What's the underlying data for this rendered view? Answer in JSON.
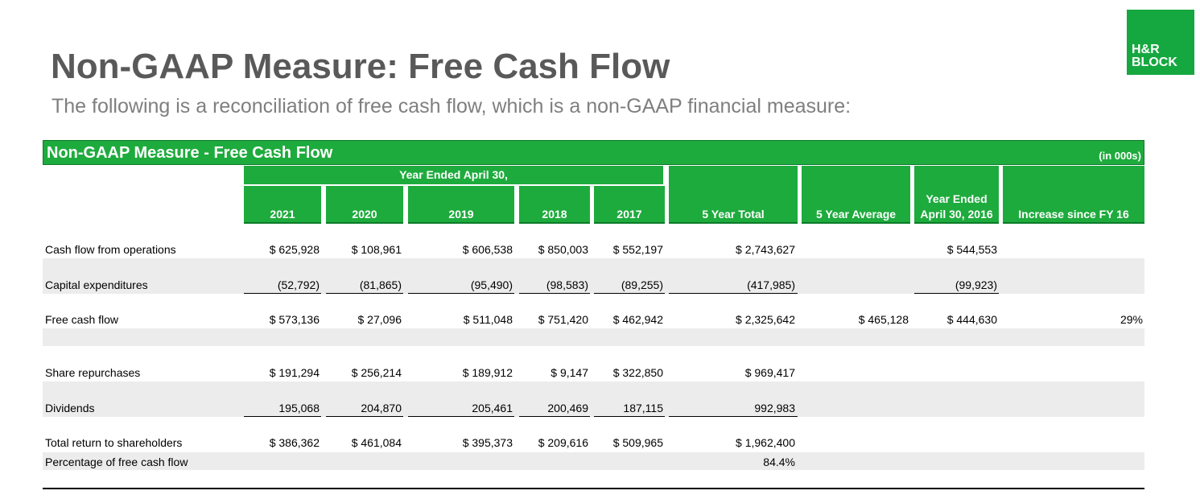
{
  "header": {
    "title": "Non-GAAP Measure: Free Cash Flow",
    "subtitle": "The following is a reconciliation of free cash flow, which is a non-GAAP financial measure:",
    "logo_line1": "H&R",
    "logo_line2": "BLOCK"
  },
  "table": {
    "banner_title": "Non-GAAP Measure - Free Cash Flow",
    "units": "(in 000s)",
    "group_header": "Year Ended April 30,",
    "columns": [
      "2021",
      "2020",
      "2019",
      "2018",
      "2017",
      "5 Year Total",
      "5 Year Average",
      "Year Ended April 30, 2016",
      "Increase since FY 16"
    ],
    "column_2016_line1": "Year Ended",
    "column_2016_line2": "April 30, 2016",
    "rows": [
      {
        "label": "Cash flow from operations",
        "values": [
          "$ 625,928",
          "$ 108,961",
          "$ 606,538",
          "$ 850,003",
          "$ 552,197",
          "$ 2,743,627",
          "",
          "$ 544,553",
          ""
        ]
      },
      {
        "label": "Capital expenditures",
        "values": [
          "(52,792)",
          "(81,865)",
          "(95,490)",
          "(98,583)",
          "(89,255)",
          "(417,985)",
          "",
          "(99,923)",
          ""
        ]
      },
      {
        "label": "Free cash flow",
        "values": [
          "$ 573,136",
          "$ 27,096",
          "$ 511,048",
          "$ 751,420",
          "$ 462,942",
          "$ 2,325,642",
          "$ 465,128",
          "$ 444,630",
          "29%"
        ]
      },
      {
        "label": "Share repurchases",
        "values": [
          "$ 191,294",
          "$ 256,214",
          "$ 189,912",
          "$ 9,147",
          "$ 322,850",
          "$ 969,417",
          "",
          "",
          ""
        ]
      },
      {
        "label": "Dividends",
        "values": [
          "195,068",
          "204,870",
          "205,461",
          "200,469",
          "187,115",
          "992,983",
          "",
          "",
          ""
        ]
      },
      {
        "label": "Total return to shareholders",
        "values": [
          "$ 386,362",
          "$ 461,084",
          "$ 395,373",
          "$ 209,616",
          "$ 509,965",
          "$ 1,962,400",
          "",
          "",
          ""
        ]
      },
      {
        "label": "Percentage of free cash flow",
        "values": [
          "",
          "",
          "",
          "",
          "",
          "84.4%",
          "",
          "",
          ""
        ]
      }
    ]
  },
  "colors": {
    "brand_green": "#1eab3d",
    "band_gray": "#ececec",
    "title_gray": "#595959"
  }
}
